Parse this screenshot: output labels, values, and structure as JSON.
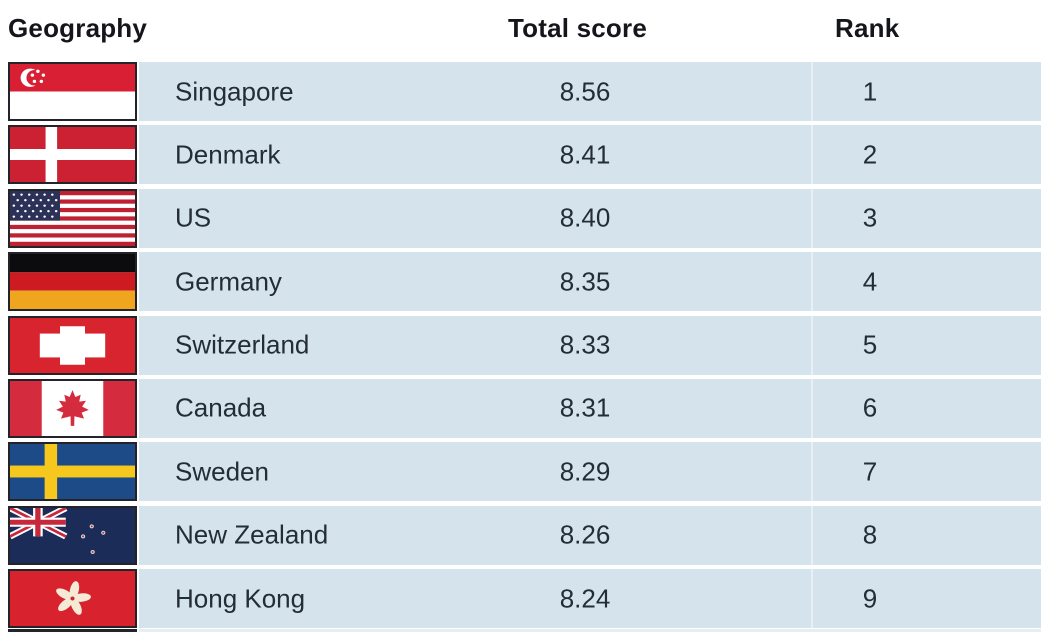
{
  "table": {
    "headers": {
      "geography": "Geography",
      "total_score": "Total score",
      "rank": "Rank"
    },
    "rows": [
      {
        "country": "Singapore",
        "total_score": "8.56",
        "rank": "1",
        "flag_icon": "singapore-flag-icon",
        "flag": "sg"
      },
      {
        "country": "Denmark",
        "total_score": "8.41",
        "rank": "2",
        "flag_icon": "denmark-flag-icon",
        "flag": "dk"
      },
      {
        "country": "US",
        "total_score": "8.40",
        "rank": "3",
        "flag_icon": "us-flag-icon",
        "flag": "us"
      },
      {
        "country": "Germany",
        "total_score": "8.35",
        "rank": "4",
        "flag_icon": "germany-flag-icon",
        "flag": "de"
      },
      {
        "country": "Switzerland",
        "total_score": "8.33",
        "rank": "5",
        "flag_icon": "switzerland-flag-icon",
        "flag": "ch"
      },
      {
        "country": "Canada",
        "total_score": "8.31",
        "rank": "6",
        "flag_icon": "canada-flag-icon",
        "flag": "ca"
      },
      {
        "country": "Sweden",
        "total_score": "8.29",
        "rank": "7",
        "flag_icon": "sweden-flag-icon",
        "flag": "se"
      },
      {
        "country": "New Zealand",
        "total_score": "8.26",
        "rank": "8",
        "flag_icon": "new-zealand-flag-icon",
        "flag": "nz"
      },
      {
        "country": "Hong Kong",
        "total_score": "8.24",
        "rank": "9",
        "flag_icon": "hong-kong-flag-icon",
        "flag": "hk"
      }
    ],
    "partial_next_row_visible": true
  },
  "chart_data": {
    "type": "table",
    "columns": [
      "Geography",
      "Total score",
      "Rank"
    ],
    "rows": [
      [
        "Singapore",
        8.56,
        1
      ],
      [
        "Denmark",
        8.41,
        2
      ],
      [
        "US",
        8.4,
        3
      ],
      [
        "Germany",
        8.35,
        4
      ],
      [
        "Switzerland",
        8.33,
        5
      ],
      [
        "Canada",
        8.31,
        6
      ],
      [
        "Sweden",
        8.29,
        7
      ],
      [
        "New Zealand",
        8.26,
        8
      ],
      [
        "Hong Kong",
        8.24,
        9
      ]
    ]
  },
  "colors": {
    "row_background": "#d5e3ec",
    "header_text": "#15161b",
    "cell_text": "#222d38",
    "flag_border": "#23232a"
  }
}
